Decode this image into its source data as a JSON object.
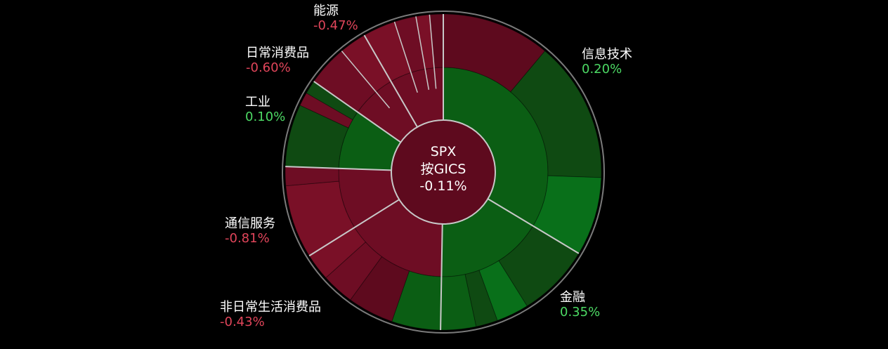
{
  "chart_data": {
    "type": "sunburst",
    "center": {
      "index": "SPX",
      "grouping": "按GICS",
      "change": "-0.11%"
    },
    "sectors": [
      {
        "name": "信息技术",
        "change": "0.20%",
        "value": 0.2,
        "sign": "pos"
      },
      {
        "name": "金融",
        "change": "0.35%",
        "value": 0.35,
        "sign": "pos"
      },
      {
        "name": "非日常生活消费品",
        "change": "-0.43%",
        "value": -0.43,
        "sign": "neg"
      },
      {
        "name": "通信服务",
        "change": "-0.81%",
        "value": -0.81,
        "sign": "neg"
      },
      {
        "name": "工业",
        "change": "0.10%",
        "value": 0.1,
        "sign": "pos"
      },
      {
        "name": "日常消费品",
        "change": "-0.60%",
        "value": -0.6,
        "sign": "neg"
      },
      {
        "name": "能源",
        "change": "-0.47%",
        "value": -0.47,
        "sign": "neg"
      }
    ],
    "colors": {
      "positive_dark": "#0f4a12",
      "positive": "#0b5e14",
      "positive_bright": "#09701a",
      "negative_dark": "#5e0a1e",
      "negative": "#6e0d24",
      "negative_bright": "#7a1027",
      "border": "#c8c8c8",
      "background": "#000000"
    }
  }
}
